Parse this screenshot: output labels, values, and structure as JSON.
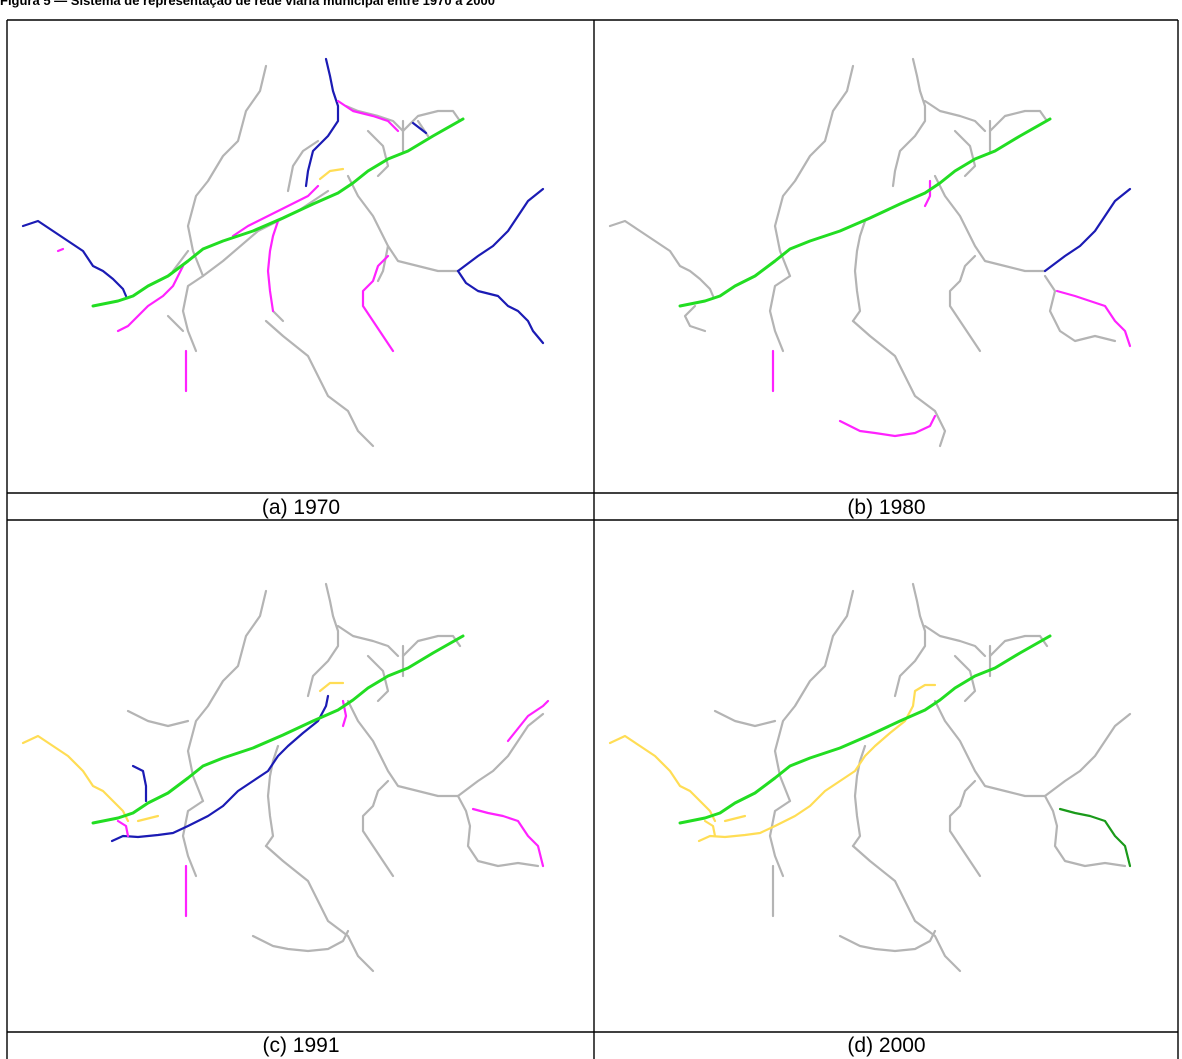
{
  "figure_title": "Figura 5 — Sistema de representação de rede viária municipal entre 1970 a 2000",
  "panels": [
    {
      "caption": "(a) 1970"
    },
    {
      "caption": "(b) 1980"
    },
    {
      "caption": "(c) 1991"
    },
    {
      "caption": "(d) 2000"
    }
  ],
  "colors": {
    "grid": "#000000",
    "road_network": "#b4b4b4",
    "highway": "#22dd22",
    "magenta_roads": "#ff22ff",
    "blue_roads": "#1b1bb4",
    "yellow_roads": "#ffdd55",
    "dark_green_road": "#1a9a1a"
  }
}
